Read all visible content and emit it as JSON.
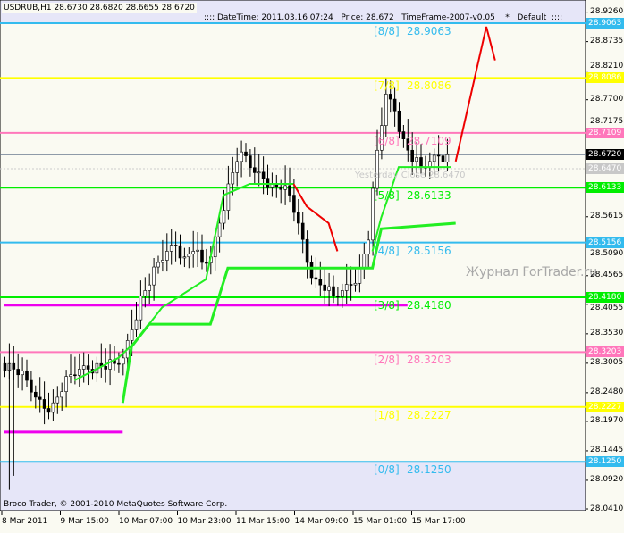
{
  "header": {
    "symbol_line": "USDRUB,H1  28.6730 28.6820 28.6655 28.6720",
    "info_line": ":::: DateTime: 2011.03.16 07:24   Price: 28.672   TimeFrame-2007-v0.05    *   Default  ::::"
  },
  "footer": {
    "copyright": "Broco Trader, © 2001-2010 MetaQuotes Software Corp."
  },
  "watermark": "Журнал ForTrader.ru",
  "yesterday_close": {
    "label": "Yesterday Close 28.6470",
    "value": 28.647,
    "color": "#c8c8c8"
  },
  "current_price": {
    "label": "28.6720",
    "value": 28.672,
    "color": "#000000"
  },
  "chart_data": {
    "type": "candlestick",
    "x_ticks": [
      "8 Mar 2011",
      "9 Mar 15:00",
      "10 Mar 07:00",
      "10 Mar 23:00",
      "11 Mar 15:00",
      "14 Mar 09:00",
      "15 Mar 01:00",
      "15 Mar 17:00"
    ],
    "y_ticks": [
      "28.9260",
      "28.8735",
      "28.8210",
      "28.7700",
      "28.7175",
      "28.5615",
      "28.5090",
      "28.4565",
      "28.4055",
      "28.3530",
      "28.3005",
      "28.2480",
      "28.1970",
      "28.1445",
      "28.0920",
      "28.0410"
    ],
    "ylim": [
      28.041,
      28.935
    ],
    "murrey_levels": [
      {
        "label": "[8/8]",
        "value": "28.9063",
        "color": "#33bbee"
      },
      {
        "label": "[7/8]",
        "value": "28.8086",
        "color": "#ffff00"
      },
      {
        "label": "[6/8]",
        "value": "28.7109",
        "color": "#ff77bb"
      },
      {
        "label": "[5/8]",
        "value": "28.6133",
        "color": "#00ee00"
      },
      {
        "label": "[4/8]",
        "value": "28.5156",
        "color": "#33bbee"
      },
      {
        "label": "[3/8]",
        "value": "28.4180",
        "color": "#00ee00"
      },
      {
        "label": "[2/8]",
        "value": "28.3203",
        "color": "#ff77bb"
      },
      {
        "label": "[1/8]",
        "value": "28.2227",
        "color": "#ffff00"
      },
      {
        "label": "[0/8]",
        "value": "28.1250",
        "color": "#33bbee"
      }
    ],
    "closes": [
      28.3,
      28.28,
      28.27,
      28.24,
      28.22,
      28.23,
      28.25,
      28.28,
      28.29,
      28.29,
      28.3,
      28.29,
      28.3,
      28.31,
      28.36,
      28.42,
      28.44,
      28.48,
      28.5,
      28.51,
      28.49,
      28.5,
      28.48,
      28.49,
      28.55,
      28.62,
      28.66,
      28.67,
      28.64,
      28.63,
      28.62,
      28.61,
      28.6,
      28.55,
      28.48,
      28.45,
      28.43,
      28.42,
      28.43,
      28.44,
      28.47,
      28.52,
      28.68,
      28.78,
      28.75,
      28.7,
      28.66,
      28.65,
      28.66,
      28.67,
      28.672
    ],
    "thin_trail": [
      [
        16,
        28.27
      ],
      [
        26,
        28.31
      ],
      [
        30,
        28.34
      ],
      [
        36,
        28.4
      ],
      [
        46,
        28.45
      ],
      [
        50,
        28.6
      ],
      [
        56,
        28.62
      ],
      [
        66,
        28.62
      ]
    ],
    "red_trail": [
      [
        66,
        28.62
      ],
      [
        69,
        28.58
      ],
      [
        74,
        28.55
      ],
      [
        76,
        28.5
      ]
    ],
    "thin_trail2": [
      [
        84,
        28.5
      ],
      [
        86,
        28.56
      ],
      [
        90,
        28.65
      ],
      [
        102,
        28.65
      ]
    ],
    "thick_trail": [
      [
        27,
        28.23
      ],
      [
        29,
        28.33
      ],
      [
        33,
        28.37
      ],
      [
        47,
        28.37
      ],
      [
        51,
        28.47
      ],
      [
        84,
        28.47
      ],
      [
        86,
        28.54
      ],
      [
        103,
        28.55
      ]
    ],
    "magenta_lines": [
      [
        0,
        27,
        28.178
      ],
      [
        0,
        92,
        28.404
      ]
    ],
    "projection": [
      [
        103,
        28.66
      ],
      [
        110,
        28.9
      ],
      [
        112,
        28.84
      ]
    ]
  }
}
